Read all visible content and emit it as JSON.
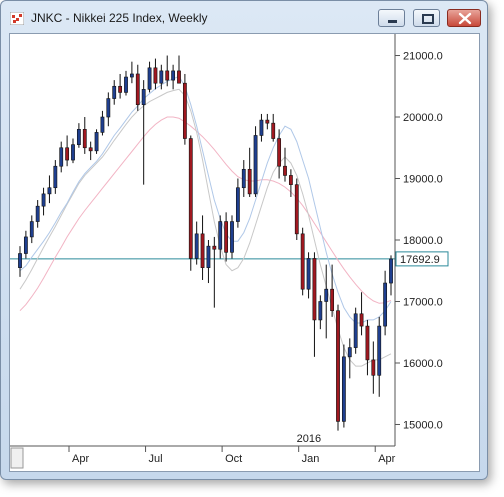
{
  "window": {
    "title": "JNKC - Nikkei 225 Index, Weekly",
    "icon": "chart-app-icon"
  },
  "chart_data": {
    "type": "candlestick",
    "title": "JNKC - Nikkei 225 Index, Weekly",
    "ylim": [
      14650,
      21350
    ],
    "y_ticks": [
      {
        "value": 21000,
        "label": "21000.0"
      },
      {
        "value": 20000,
        "label": "20000.0"
      },
      {
        "value": 19000,
        "label": "19000.0"
      },
      {
        "value": 18000,
        "label": "18000.0"
      },
      {
        "value": 17000,
        "label": "17000.0"
      },
      {
        "value": 16000,
        "label": "16000.0"
      },
      {
        "value": 15000,
        "label": "15000.0"
      }
    ],
    "x_ticks": [
      {
        "index": 9,
        "label": "Apr"
      },
      {
        "index": 22,
        "label": "Jul"
      },
      {
        "index": 35,
        "label": "Oct"
      },
      {
        "index": 48,
        "label": "Jan"
      },
      {
        "index": 61,
        "label": "Apr"
      }
    ],
    "year_label": {
      "index": 48,
      "label": "2016"
    },
    "last_price": {
      "value": 17692.9,
      "label": "17692.9"
    },
    "colors": {
      "up": "#1f3f8f",
      "down": "#a01820",
      "ma_fast": "#b0c8e8",
      "ma_mid": "#c8c8c8",
      "ma_slow": "#f2b4c4",
      "last_line": "#2a8a9a"
    },
    "candles": [
      [
        17550,
        17900,
        17400,
        17780
      ],
      [
        17780,
        18150,
        17700,
        18050
      ],
      [
        18050,
        18400,
        17950,
        18300
      ],
      [
        18300,
        18650,
        18200,
        18550
      ],
      [
        18550,
        18850,
        18400,
        18750
      ],
      [
        18750,
        19050,
        18600,
        18850
      ],
      [
        18850,
        19300,
        18750,
        19200
      ],
      [
        19200,
        19600,
        19100,
        19500
      ],
      [
        19500,
        19700,
        19200,
        19300
      ],
      [
        19300,
        19650,
        19250,
        19550
      ],
      [
        19550,
        19900,
        19500,
        19800
      ],
      [
        19800,
        20000,
        19400,
        19500
      ],
      [
        19500,
        19600,
        19300,
        19450
      ],
      [
        19450,
        19800,
        19400,
        19750
      ],
      [
        19750,
        20100,
        19700,
        20000
      ],
      [
        20000,
        20400,
        19850,
        20300
      ],
      [
        20300,
        20600,
        20200,
        20500
      ],
      [
        20500,
        20700,
        20300,
        20400
      ],
      [
        20400,
        20750,
        20350,
        20650
      ],
      [
        20650,
        20900,
        20550,
        20700
      ],
      [
        20700,
        20850,
        20100,
        20200
      ],
      [
        20200,
        20600,
        18900,
        20450
      ],
      [
        20450,
        20900,
        20400,
        20800
      ],
      [
        20800,
        20950,
        20450,
        20550
      ],
      [
        20550,
        20850,
        20450,
        20750
      ],
      [
        20750,
        21000,
        20500,
        20600
      ],
      [
        20600,
        20850,
        20450,
        20750
      ],
      [
        20750,
        21000,
        20550,
        20550
      ],
      [
        20550,
        20700,
        19550,
        19650
      ],
      [
        19650,
        19700,
        17500,
        17700
      ],
      [
        17700,
        18300,
        17600,
        18100
      ],
      [
        18100,
        18400,
        17350,
        17550
      ],
      [
        17550,
        18000,
        17300,
        17900
      ],
      [
        17900,
        18050,
        16900,
        17850
      ],
      [
        17850,
        18400,
        17700,
        18300
      ],
      [
        18300,
        18450,
        17650,
        17800
      ],
      [
        17800,
        18400,
        17700,
        18300
      ],
      [
        18300,
        19000,
        18200,
        18850
      ],
      [
        18850,
        19300,
        18700,
        19150
      ],
      [
        19150,
        19500,
        18700,
        18750
      ],
      [
        18750,
        19850,
        18700,
        19700
      ],
      [
        19700,
        20050,
        19600,
        19950
      ],
      [
        19950,
        20050,
        19800,
        19900
      ],
      [
        19900,
        20050,
        19600,
        19650
      ],
      [
        19650,
        19800,
        19000,
        19200
      ],
      [
        19200,
        19500,
        18950,
        19050
      ],
      [
        19050,
        19150,
        18700,
        18900
      ],
      [
        18900,
        19000,
        18000,
        18100
      ],
      [
        18100,
        18200,
        17100,
        17200
      ],
      [
        17200,
        17800,
        17050,
        17700
      ],
      [
        17700,
        17800,
        16100,
        16700
      ],
      [
        16700,
        17100,
        16550,
        17000
      ],
      [
        17000,
        17600,
        16400,
        17200
      ],
      [
        17200,
        17600,
        16750,
        16850
      ],
      [
        16850,
        16950,
        14900,
        15050
      ],
      [
        15050,
        16300,
        14950,
        16100
      ],
      [
        16100,
        16400,
        15750,
        16250
      ],
      [
        16250,
        16900,
        16150,
        16800
      ],
      [
        16800,
        17150,
        16450,
        16600
      ],
      [
        16600,
        16700,
        15800,
        16050
      ],
      [
        16050,
        16350,
        15500,
        15800
      ],
      [
        15800,
        16750,
        15450,
        16600
      ],
      [
        16600,
        17500,
        16450,
        17300
      ],
      [
        17300,
        17750,
        17100,
        17692
      ]
    ],
    "ma_fast": [
      17500,
      17580,
      17720,
      17850,
      17980,
      18120,
      18280,
      18450,
      18600,
      18780,
      18950,
      19080,
      19180,
      19280,
      19400,
      19550,
      19700,
      19820,
      19950,
      20080,
      20180,
      20300,
      20380,
      20460,
      20520,
      20580,
      20620,
      20660,
      20500,
      20200,
      19850,
      19450,
      19050,
      18650,
      18350,
      18100,
      17980,
      17980,
      18120,
      18350,
      18650,
      18950,
      19250,
      19500,
      19700,
      19850,
      19800,
      19600,
      19300,
      19000,
      18600,
      18200,
      17800,
      17450,
      17150,
      16900,
      16750,
      16650,
      16650,
      16700,
      16700,
      16750,
      16850,
      17000
    ],
    "ma_mid": [
      17200,
      17350,
      17520,
      17700,
      17880,
      18050,
      18220,
      18400,
      18580,
      18750,
      18920,
      19050,
      19150,
      19250,
      19350,
      19480,
      19620,
      19750,
      19880,
      20000,
      20100,
      20180,
      20250,
      20300,
      20350,
      20400,
      20430,
      20450,
      20350,
      20100,
      19750,
      19300,
      18800,
      18300,
      17900,
      17600,
      17500,
      17550,
      17700,
      17950,
      18250,
      18550,
      18850,
      19100,
      19250,
      19350,
      19250,
      19050,
      18750,
      18400,
      18000,
      17600,
      17250,
      16900,
      16550,
      16250,
      16050,
      15950,
      15950,
      16000,
      16050,
      16050,
      16100,
      16150
    ],
    "ma_slow": [
      16850,
      16950,
      17080,
      17220,
      17380,
      17550,
      17720,
      17880,
      18050,
      18200,
      18350,
      18480,
      18600,
      18720,
      18840,
      18960,
      19080,
      19200,
      19320,
      19440,
      19560,
      19680,
      19790,
      19880,
      19950,
      20000,
      20000,
      19980,
      19920,
      19850,
      19770,
      19680,
      19580,
      19470,
      19350,
      19230,
      19120,
      19030,
      18980,
      18960,
      18960,
      18980,
      18980,
      18960,
      18920,
      18860,
      18780,
      18680,
      18560,
      18420,
      18270,
      18120,
      17970,
      17820,
      17670,
      17530,
      17400,
      17280,
      17170,
      17080,
      17010,
      16970,
      16980,
      17020
    ]
  }
}
